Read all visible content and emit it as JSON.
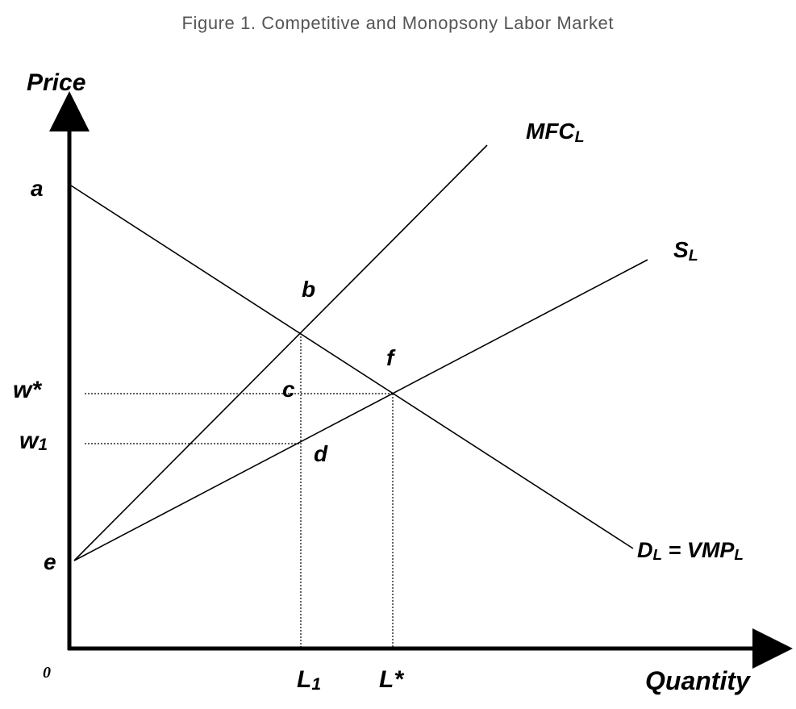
{
  "title": "Figure 1. Competitive and Monopsony Labor Market",
  "axes": {
    "y_label": "Price",
    "x_label": "Quantity",
    "origin": "0"
  },
  "points": [
    "a",
    "b",
    "c",
    "d",
    "e",
    "f"
  ],
  "y_marks": [
    {
      "parts": [
        "w*"
      ]
    },
    {
      "parts": [
        "w",
        "1"
      ]
    }
  ],
  "x_marks": [
    {
      "parts": [
        "L",
        "1"
      ]
    },
    {
      "parts": [
        "L*"
      ]
    }
  ],
  "curves": [
    {
      "parts": [
        "MFC",
        "L"
      ]
    },
    {
      "parts": [
        "S",
        "L"
      ]
    },
    {
      "parts": [
        "D",
        "L",
        " = VMP",
        "L"
      ]
    }
  ]
}
